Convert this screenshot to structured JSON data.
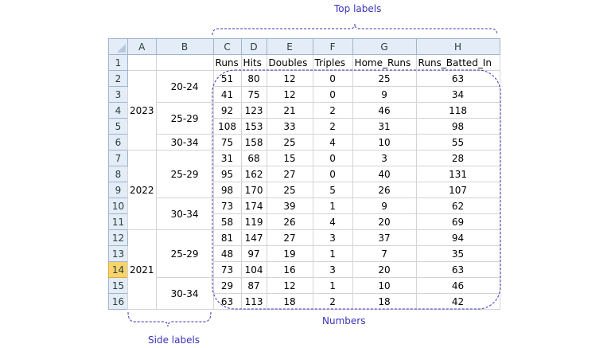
{
  "columns": [
    "A",
    "B",
    "C",
    "D",
    "E",
    "F",
    "G",
    "H"
  ],
  "selected_row": "14",
  "header_row": {
    "row": "1",
    "labels": [
      "Runs",
      "Hits",
      "Doubles",
      "Triples",
      "Home_Runs",
      "Runs_Batted_In"
    ]
  },
  "years": [
    {
      "label": "2023",
      "age_groups": [
        {
          "label": "20-24",
          "rows": [
            {
              "row": "2",
              "values": [
                "51",
                "80",
                "12",
                "0",
                "25",
                "63"
              ]
            },
            {
              "row": "3",
              "values": [
                "41",
                "75",
                "12",
                "0",
                "9",
                "34"
              ]
            }
          ]
        },
        {
          "label": "25-29",
          "rows": [
            {
              "row": "4",
              "values": [
                "92",
                "123",
                "21",
                "2",
                "46",
                "118"
              ]
            },
            {
              "row": "5",
              "values": [
                "108",
                "153",
                "33",
                "2",
                "31",
                "98"
              ]
            }
          ]
        },
        {
          "label": "30-34",
          "rows": [
            {
              "row": "6",
              "values": [
                "75",
                "158",
                "25",
                "4",
                "10",
                "55"
              ]
            }
          ]
        }
      ]
    },
    {
      "label": "2022",
      "age_groups": [
        {
          "label": "25-29",
          "rows": [
            {
              "row": "7",
              "values": [
                "31",
                "68",
                "15",
                "0",
                "3",
                "28"
              ]
            },
            {
              "row": "8",
              "values": [
                "95",
                "162",
                "27",
                "0",
                "40",
                "131"
              ]
            },
            {
              "row": "9",
              "values": [
                "98",
                "170",
                "25",
                "5",
                "26",
                "107"
              ]
            }
          ]
        },
        {
          "label": "30-34",
          "rows": [
            {
              "row": "10",
              "values": [
                "73",
                "174",
                "39",
                "1",
                "9",
                "62"
              ]
            },
            {
              "row": "11",
              "values": [
                "58",
                "119",
                "26",
                "4",
                "20",
                "69"
              ]
            }
          ]
        }
      ]
    },
    {
      "label": "2021",
      "age_groups": [
        {
          "label": "25-29",
          "rows": [
            {
              "row": "12",
              "values": [
                "81",
                "147",
                "27",
                "3",
                "37",
                "94"
              ]
            },
            {
              "row": "13",
              "values": [
                "48",
                "97",
                "19",
                "1",
                "7",
                "35"
              ]
            },
            {
              "row": "14",
              "values": [
                "73",
                "104",
                "16",
                "3",
                "20",
                "63"
              ]
            }
          ]
        },
        {
          "label": "30-34",
          "rows": [
            {
              "row": "15",
              "values": [
                "29",
                "87",
                "12",
                "1",
                "10",
                "46"
              ]
            },
            {
              "row": "16",
              "values": [
                "63",
                "113",
                "18",
                "2",
                "18",
                "42"
              ]
            }
          ]
        }
      ]
    }
  ],
  "annotations": {
    "top": "Top labels",
    "numbers": "Numbers",
    "side": "Side labels"
  },
  "colors": {
    "annotation": "#3b32b8",
    "header_bg": "#e4ecf7",
    "selected_header": "#f8d46d",
    "gridline": "#d4d4d4"
  }
}
